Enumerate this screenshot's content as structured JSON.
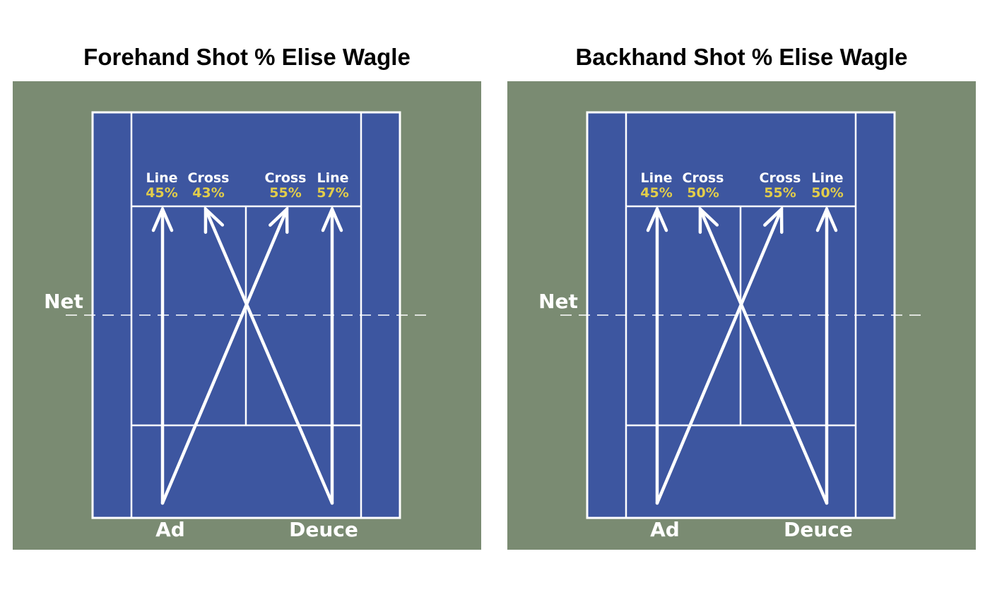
{
  "colors": {
    "surround": "#7a8b72",
    "court": "#3d56a0",
    "lines": "#ffffff",
    "percent": "#e2cd4a"
  },
  "panels": [
    {
      "title": "Forehand Shot % Elise Wagle",
      "net_label": "Net",
      "side_labels": {
        "ad": "Ad",
        "deuce": "Deuce"
      },
      "targets": [
        {
          "label": "Line",
          "pct": "45%"
        },
        {
          "label": "Cross",
          "pct": "43%"
        },
        {
          "label": "Cross",
          "pct": "55%"
        },
        {
          "label": "Line",
          "pct": "57%"
        }
      ]
    },
    {
      "title": "Backhand Shot % Elise Wagle",
      "net_label": "Net",
      "side_labels": {
        "ad": "Ad",
        "deuce": "Deuce"
      },
      "targets": [
        {
          "label": "Line",
          "pct": "45%"
        },
        {
          "label": "Cross",
          "pct": "50%"
        },
        {
          "label": "Cross",
          "pct": "55%"
        },
        {
          "label": "Line",
          "pct": "50%"
        }
      ]
    }
  ]
}
